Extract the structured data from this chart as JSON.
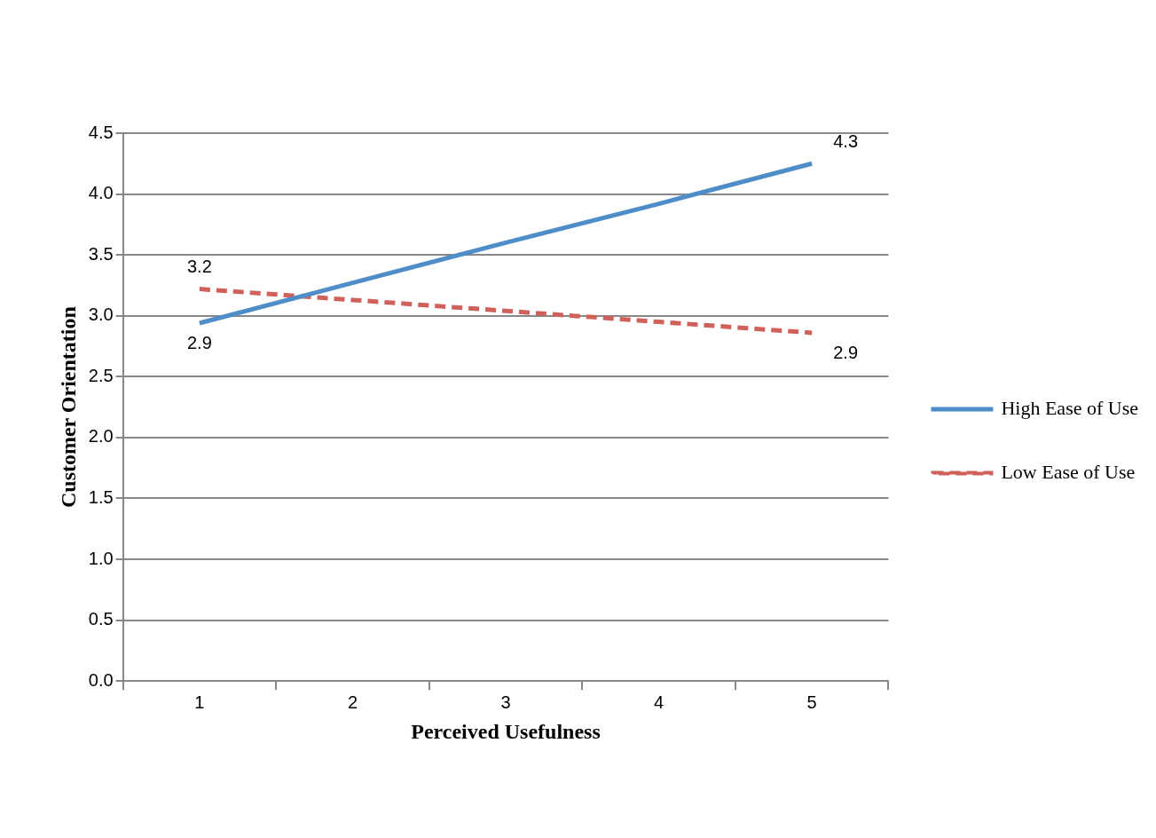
{
  "chart_data": {
    "type": "line",
    "xlabel": "Perceived Usefulness",
    "ylabel": "Customer Orientation",
    "categories": [
      "1",
      "2",
      "3",
      "4",
      "5"
    ],
    "series": [
      {
        "name": "High Ease of Use",
        "color": "#4f8dc9",
        "line_style": "solid",
        "values": [
          2.94,
          3.27,
          3.6,
          3.92,
          4.25
        ],
        "value_labels": [
          "2.9",
          null,
          null,
          null,
          "4.3"
        ]
      },
      {
        "name": "Low Ease of Use",
        "color": "#d0605a",
        "line_style": "dashed",
        "values": [
          3.22,
          3.13,
          3.04,
          2.95,
          2.86
        ],
        "value_labels": [
          "3.2",
          null,
          null,
          null,
          "2.9"
        ]
      }
    ],
    "ylim": [
      0,
      4.5
    ],
    "yticks": [
      {
        "value": 0,
        "label": "0.0"
      },
      0.5,
      {
        "value": 1,
        "label": "1.0"
      },
      1.5,
      {
        "value": 2,
        "label": "2.0"
      },
      2.5,
      {
        "value": 3,
        "label": "3.0"
      },
      3.5,
      {
        "value": 4,
        "label": "4.0"
      },
      4.5
    ],
    "grid": "y",
    "legend": "right",
    "marker": "none"
  }
}
